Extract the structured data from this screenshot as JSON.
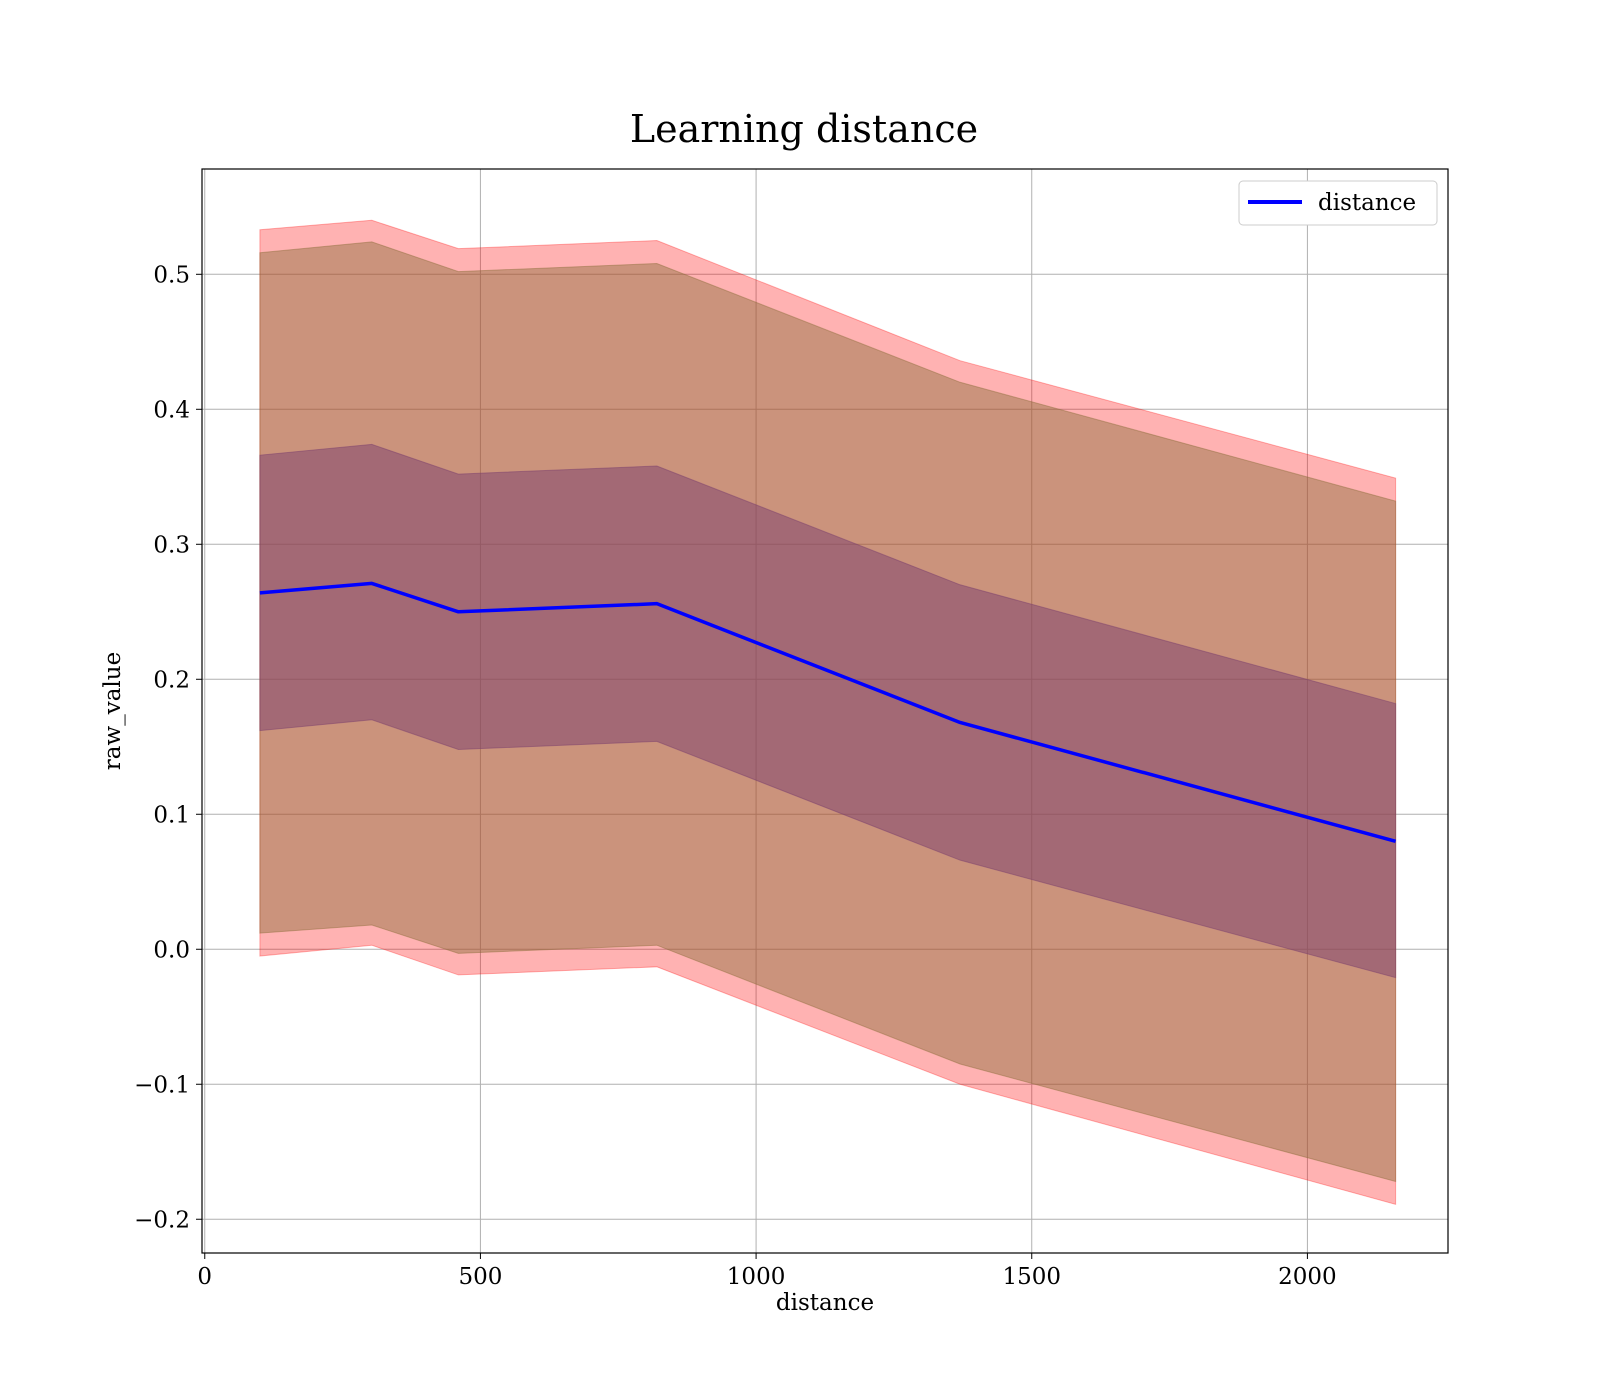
{
  "chart_data": {
    "type": "line",
    "title": "Learning distance",
    "xlabel": "distance",
    "ylabel": "raw_value",
    "xlim": [
      -5,
      2255
    ],
    "ylim": [
      -0.225,
      0.578
    ],
    "xticks": [
      0,
      500,
      1000,
      1500,
      2000
    ],
    "xtick_labels": [
      "0",
      "500",
      "1000",
      "1500",
      "2000"
    ],
    "yticks": [
      -0.2,
      -0.1,
      0.0,
      0.1,
      0.2,
      0.3,
      0.4,
      0.5
    ],
    "ytick_labels": [
      "−0.2",
      "−0.1",
      "0.0",
      "0.1",
      "0.2",
      "0.3",
      "0.4",
      "0.5"
    ],
    "grid": true,
    "legend_position": "top-right",
    "x": [
      100,
      303,
      460,
      820,
      1370,
      2160
    ],
    "series": [
      {
        "name": "distance",
        "color": "#0000ff",
        "values": [
          0.264,
          0.271,
          0.25,
          0.256,
          0.168,
          0.08
        ]
      }
    ],
    "bands": [
      {
        "color": "#ff0000",
        "opacity": 0.3,
        "lower": [
          -0.005,
          0.003,
          -0.019,
          -0.013,
          -0.1,
          -0.189
        ],
        "upper": [
          0.533,
          0.54,
          0.519,
          0.525,
          0.436,
          0.349
        ]
      },
      {
        "color": "#8b6d3a",
        "opacity": 0.45,
        "lower": [
          0.012,
          0.018,
          -0.003,
          0.003,
          -0.085,
          -0.172
        ],
        "upper": [
          0.516,
          0.524,
          0.502,
          0.508,
          0.42,
          0.332
        ]
      },
      {
        "color": "#7b3f6e",
        "opacity": 0.5,
        "lower": [
          0.162,
          0.17,
          0.148,
          0.154,
          0.066,
          -0.021
        ],
        "upper": [
          0.366,
          0.374,
          0.352,
          0.358,
          0.27,
          0.182
        ]
      }
    ]
  }
}
